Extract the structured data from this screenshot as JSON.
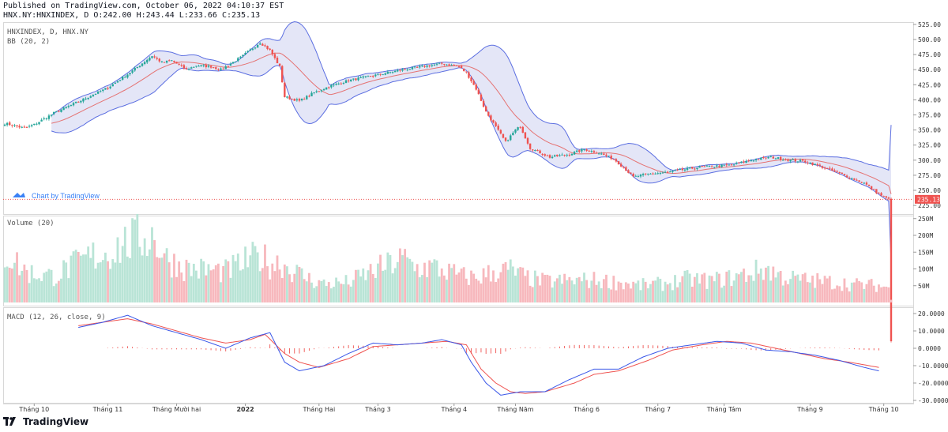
{
  "header": {
    "published": "Published on TradingView.com, October 06, 2022 04:10:37 EST",
    "ohlc": "HNX.NY:HNXINDEX, D O:242.00 H:243.44 L:233.66 C:235.13"
  },
  "footer": {
    "brand": "TradingView"
  },
  "colors": {
    "up": "#26a69a",
    "down": "#ef5350",
    "volUp": "#b9e4d6",
    "volDown": "#f7b8bd",
    "bbBand": "#5b6ee1",
    "bbBasis": "#e57373",
    "bbFill": "#d9dbf3",
    "macd": "#3a57e8",
    "signal": "#ef5350",
    "hist": "#ef5350",
    "lastPrice": "#ef5350"
  },
  "chart_data": {
    "type": "candlestick",
    "symbol": "HNXINDEX, D, HNX.NY",
    "indicator_label": "BB (20, 2)",
    "volume_label": "Volume (20)",
    "macd_label": "MACD (12, 26, close, 9)",
    "watermark": "Chart by TradingView",
    "last_price": "235.13",
    "price_axis": {
      "range": [
        225,
        525
      ],
      "ticks": [
        "525.00",
        "500.00",
        "475.00",
        "450.00",
        "425.00",
        "400.00",
        "375.00",
        "350.00",
        "325.00",
        "300.00",
        "275.00",
        "250.00",
        "225.00"
      ]
    },
    "volume_axis": {
      "range": [
        0,
        250
      ],
      "ticks": [
        "250M",
        "200M",
        "150M",
        "100M",
        "50M"
      ]
    },
    "macd_axis": {
      "range": [
        -30,
        20
      ],
      "ticks": [
        "20.0000",
        "10.0000",
        "0.0000",
        "-10.0000",
        "-20.0000",
        "-30.0000"
      ]
    },
    "x_labels": [
      "Tháng 10",
      "Tháng 11",
      "Tháng Mười hai",
      "2022",
      "Tháng Hai",
      "Tháng 3",
      "Tháng 4",
      "Tháng Năm",
      "Tháng 6",
      "Tháng 7",
      "Tháng Tám",
      "Tháng 9",
      "Tháng 10"
    ],
    "x_label_bold": "2022",
    "close_keypoints": [
      [
        0,
        361
      ],
      [
        8,
        353
      ],
      [
        12,
        359
      ],
      [
        20,
        378
      ],
      [
        30,
        397
      ],
      [
        42,
        420
      ],
      [
        52,
        448
      ],
      [
        60,
        473
      ],
      [
        64,
        462
      ],
      [
        68,
        465
      ],
      [
        74,
        450
      ],
      [
        78,
        457
      ],
      [
        84,
        455
      ],
      [
        88,
        450
      ],
      [
        96,
        470
      ],
      [
        104,
        495
      ],
      [
        108,
        482
      ],
      [
        112,
        455
      ],
      [
        114,
        405
      ],
      [
        120,
        398
      ],
      [
        126,
        412
      ],
      [
        132,
        422
      ],
      [
        140,
        432
      ],
      [
        150,
        440
      ],
      [
        162,
        450
      ],
      [
        178,
        460
      ],
      [
        185,
        455
      ],
      [
        188,
        445
      ],
      [
        192,
        418
      ],
      [
        196,
        380
      ],
      [
        200,
        355
      ],
      [
        204,
        330
      ],
      [
        208,
        350
      ],
      [
        210,
        356
      ],
      [
        214,
        320
      ],
      [
        222,
        305
      ],
      [
        230,
        310
      ],
      [
        236,
        318
      ],
      [
        242,
        312
      ],
      [
        248,
        302
      ],
      [
        252,
        288
      ],
      [
        256,
        272
      ],
      [
        262,
        277
      ],
      [
        270,
        280
      ],
      [
        282,
        288
      ],
      [
        296,
        292
      ],
      [
        304,
        300
      ],
      [
        312,
        305
      ],
      [
        320,
        300
      ],
      [
        326,
        298
      ],
      [
        332,
        290
      ],
      [
        342,
        275
      ],
      [
        350,
        262
      ],
      [
        356,
        244
      ],
      [
        360,
        235
      ]
    ],
    "volume_keypoints": [
      [
        0,
        155
      ],
      [
        4,
        140
      ],
      [
        6,
        115
      ],
      [
        10,
        95
      ],
      [
        20,
        85
      ],
      [
        28,
        120
      ],
      [
        36,
        150
      ],
      [
        42,
        160
      ],
      [
        48,
        185
      ],
      [
        54,
        205
      ],
      [
        60,
        215
      ],
      [
        66,
        140
      ],
      [
        74,
        110
      ],
      [
        82,
        105
      ],
      [
        90,
        100
      ],
      [
        98,
        130
      ],
      [
        104,
        150
      ],
      [
        108,
        125
      ],
      [
        112,
        130
      ],
      [
        118,
        100
      ],
      [
        124,
        75
      ],
      [
        130,
        60
      ],
      [
        140,
        65
      ],
      [
        148,
        95
      ],
      [
        156,
        120
      ],
      [
        162,
        140
      ],
      [
        168,
        110
      ],
      [
        174,
        115
      ],
      [
        180,
        100
      ],
      [
        186,
        85
      ],
      [
        192,
        80
      ],
      [
        200,
        100
      ],
      [
        206,
        105
      ],
      [
        212,
        80
      ],
      [
        220,
        68
      ],
      [
        230,
        70
      ],
      [
        240,
        72
      ],
      [
        250,
        65
      ],
      [
        258,
        55
      ],
      [
        268,
        60
      ],
      [
        278,
        75
      ],
      [
        288,
        70
      ],
      [
        296,
        80
      ],
      [
        304,
        95
      ],
      [
        310,
        110
      ],
      [
        316,
        85
      ],
      [
        322,
        75
      ],
      [
        330,
        70
      ],
      [
        338,
        65
      ],
      [
        346,
        58
      ],
      [
        354,
        55
      ],
      [
        360,
        50
      ]
    ],
    "macd_keypoints": [
      [
        30,
        12
      ],
      [
        40,
        15
      ],
      [
        50,
        19
      ],
      [
        60,
        13
      ],
      [
        70,
        9
      ],
      [
        80,
        5
      ],
      [
        90,
        0
      ],
      [
        100,
        6
      ],
      [
        108,
        9
      ],
      [
        114,
        -8
      ],
      [
        120,
        -13
      ],
      [
        130,
        -10
      ],
      [
        140,
        -3
      ],
      [
        150,
        3
      ],
      [
        160,
        2
      ],
      [
        170,
        3
      ],
      [
        178,
        5
      ],
      [
        186,
        2
      ],
      [
        190,
        -8
      ],
      [
        196,
        -20
      ],
      [
        202,
        -27
      ],
      [
        210,
        -25
      ],
      [
        220,
        -25
      ],
      [
        230,
        -18
      ],
      [
        240,
        -12
      ],
      [
        250,
        -12
      ],
      [
        260,
        -5
      ],
      [
        270,
        0
      ],
      [
        280,
        2
      ],
      [
        290,
        4
      ],
      [
        300,
        3
      ],
      [
        310,
        -1
      ],
      [
        320,
        -2
      ],
      [
        330,
        -4
      ],
      [
        340,
        -7
      ],
      [
        350,
        -11
      ],
      [
        356,
        -13
      ]
    ],
    "signal_keypoints": [
      [
        30,
        13
      ],
      [
        40,
        15
      ],
      [
        50,
        17
      ],
      [
        60,
        14
      ],
      [
        70,
        10
      ],
      [
        80,
        6
      ],
      [
        90,
        3
      ],
      [
        100,
        5
      ],
      [
        106,
        8
      ],
      [
        114,
        -3
      ],
      [
        120,
        -8
      ],
      [
        128,
        -11
      ],
      [
        140,
        -6
      ],
      [
        150,
        1
      ],
      [
        160,
        2
      ],
      [
        170,
        3
      ],
      [
        180,
        4
      ],
      [
        188,
        2
      ],
      [
        194,
        -12
      ],
      [
        200,
        -20
      ],
      [
        206,
        -25
      ],
      [
        212,
        -26
      ],
      [
        220,
        -25
      ],
      [
        232,
        -20
      ],
      [
        240,
        -15
      ],
      [
        250,
        -13
      ],
      [
        262,
        -7
      ],
      [
        272,
        -1
      ],
      [
        284,
        2
      ],
      [
        294,
        4
      ],
      [
        304,
        3
      ],
      [
        314,
        0
      ],
      [
        324,
        -3
      ],
      [
        334,
        -6
      ],
      [
        344,
        -8
      ],
      [
        356,
        -11
      ]
    ]
  }
}
